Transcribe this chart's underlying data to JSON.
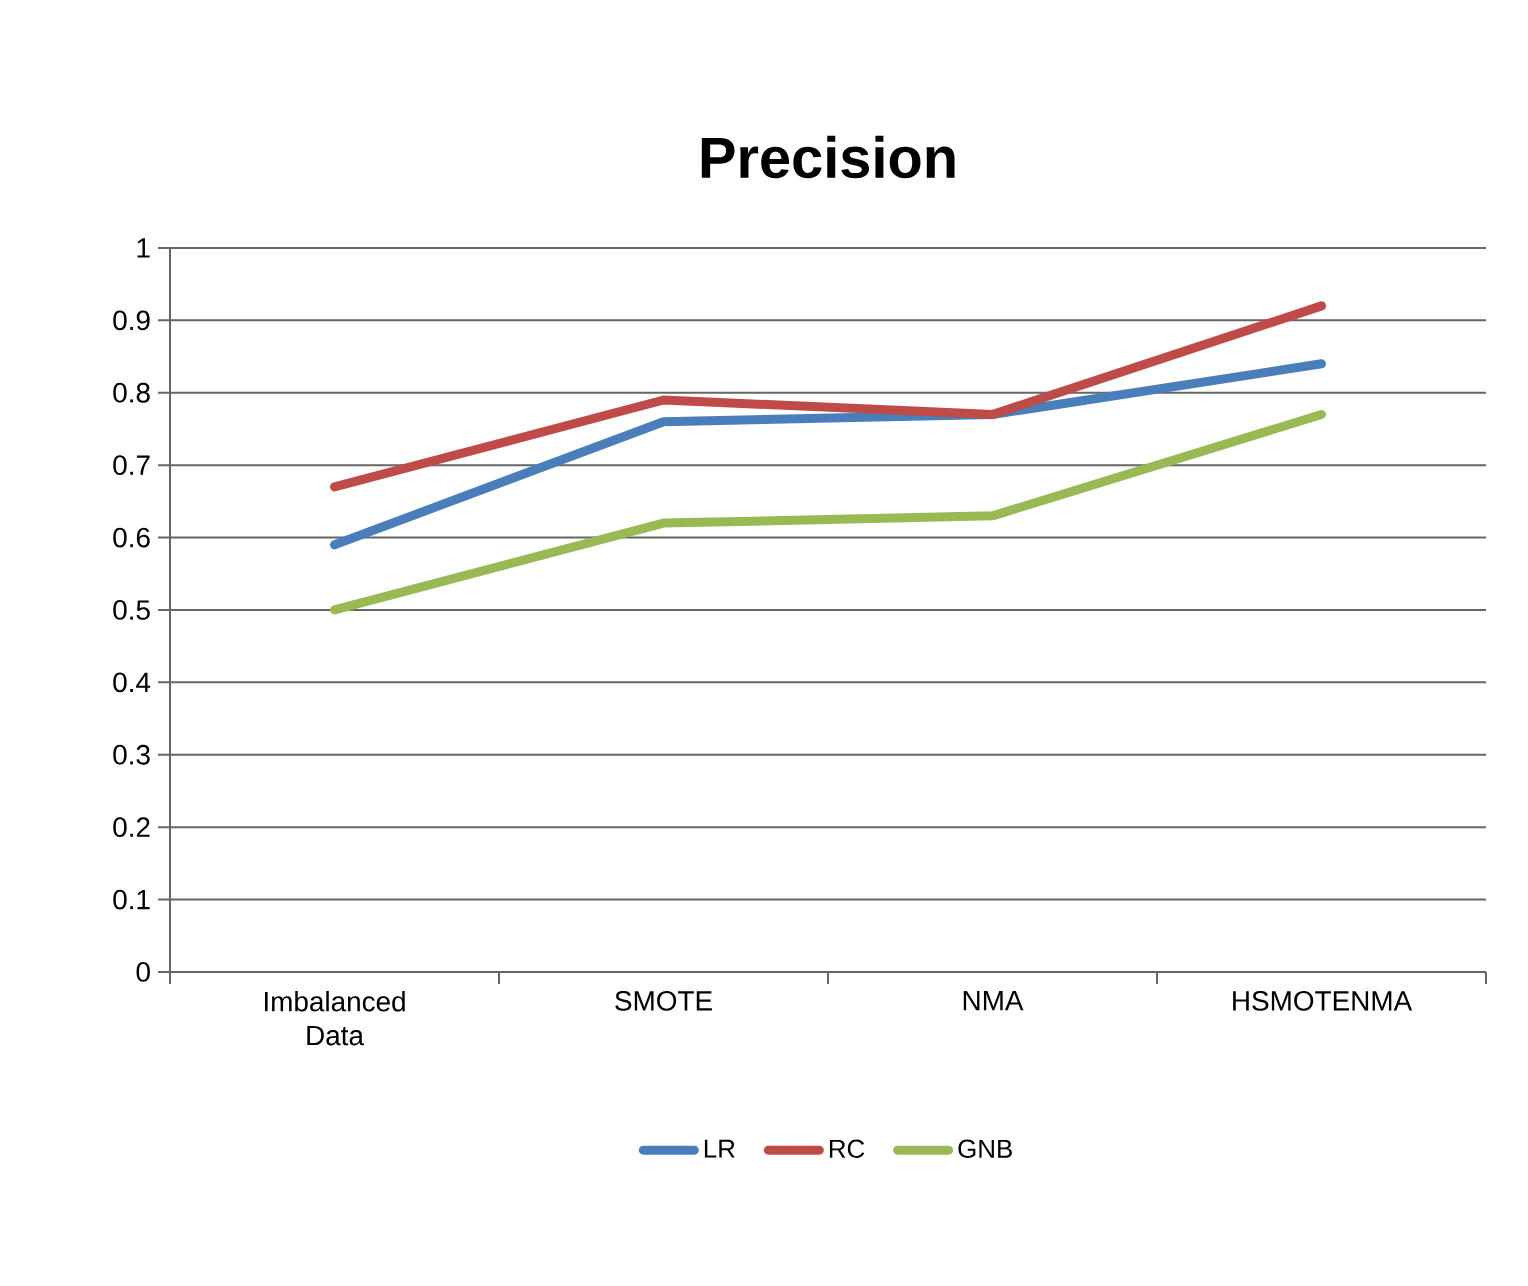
{
  "chart_data": {
    "type": "line",
    "title": "Precision",
    "categories": [
      "Imbalanced Data",
      "SMOTE",
      "NMA",
      "HSMOTENMA"
    ],
    "series": [
      {
        "name": "LR",
        "color": "#4a7ebb",
        "values": [
          0.59,
          0.76,
          0.77,
          0.84
        ]
      },
      {
        "name": "RC",
        "color": "#be4b48",
        "values": [
          0.67,
          0.79,
          0.77,
          0.92
        ]
      },
      {
        "name": "GNB",
        "color": "#98b954",
        "values": [
          0.5,
          0.62,
          0.63,
          0.77
        ]
      }
    ],
    "ylim": [
      0,
      1
    ],
    "yticks": [
      0,
      0.1,
      0.2,
      0.3,
      0.4,
      0.5,
      0.6,
      0.7,
      0.8,
      0.9,
      1
    ],
    "grid": "y",
    "legend": "bottom",
    "marker": "none",
    "line_style": "solid"
  }
}
